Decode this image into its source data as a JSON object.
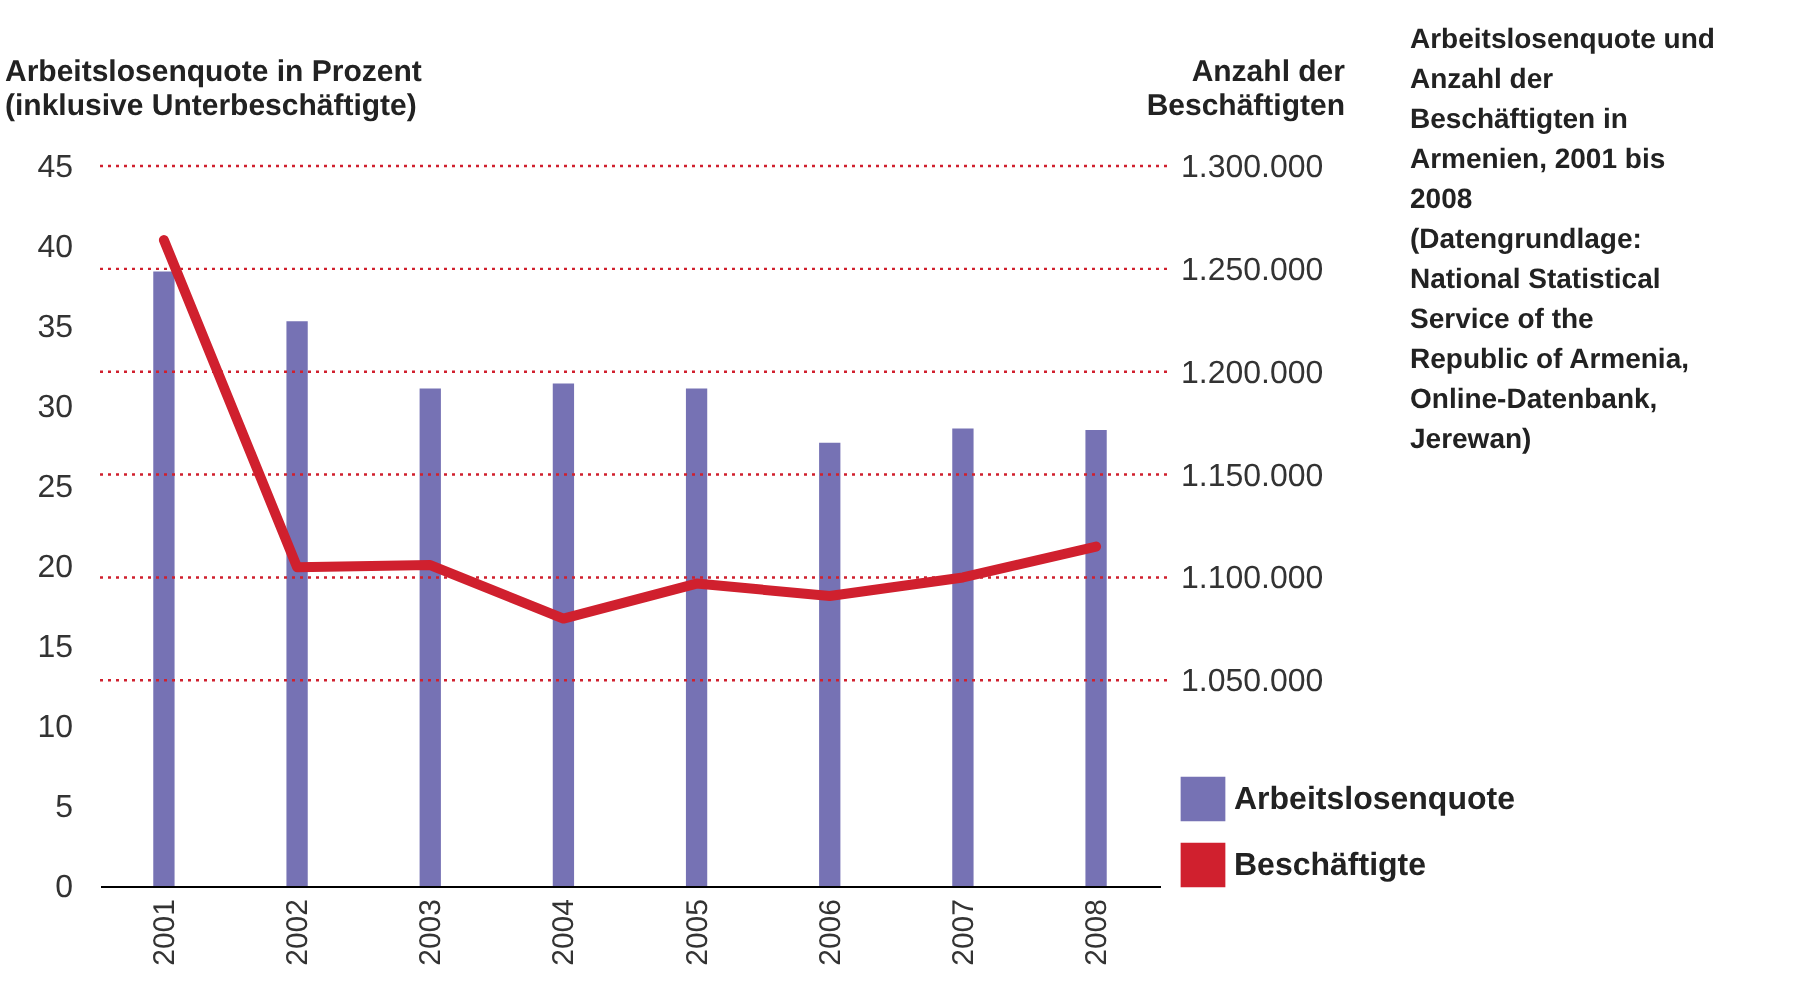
{
  "chart_data": {
    "type": "bar",
    "title": "Arbeitslosenquote und Anzahl der Beschäftigten in Armenien, 2001 bis 2008",
    "ylabel": "Arbeitslosenquote in Prozent (inklusive Unterbeschäftigte)",
    "y2label": "Anzahl der Beschäftigten",
    "annotations": [
      "(Datengrundlage: National Statistical Service of the Republic of Armenia, Online-Datenbank, Jerewan)"
    ],
    "categories": [
      "2001",
      "2002",
      "2003",
      "2004",
      "2005",
      "2006",
      "2007",
      "2008"
    ],
    "series": [
      {
        "name": "Arbeitslosenquote",
        "color": "#7672b4",
        "values": [
          38.4,
          35.3,
          31.1,
          31.4,
          31.1,
          27.7,
          28.6,
          28.5
        ]
      },
      {
        "name": "Beschäftigte",
        "type": "line",
        "axis": "y2",
        "color": "#d0202e",
        "values": [
          1264000,
          1105000,
          1106000,
          1080000,
          1097000,
          1091000,
          1100000,
          1115000
        ]
      }
    ],
    "ylim": [
      0,
      45
    ],
    "yticks": [
      0,
      5,
      10,
      15,
      20,
      25,
      30,
      35,
      40,
      45
    ],
    "y2lim": [
      950000,
      1300000
    ],
    "y2ticks": [
      {
        "value": 1050000,
        "label": "1.050.000"
      },
      {
        "value": 1100000,
        "label": "1.100.000"
      },
      {
        "value": 1150000,
        "label": "1.150.000"
      },
      {
        "value": 1200000,
        "label": "1.200.000"
      },
      {
        "value": 1250000,
        "label": "1.250.000"
      },
      {
        "value": 1300000,
        "label": "1.300.000"
      }
    ],
    "grid": "y2",
    "legend": "bottom right",
    "marker": "none",
    "line_style": "solid"
  }
}
